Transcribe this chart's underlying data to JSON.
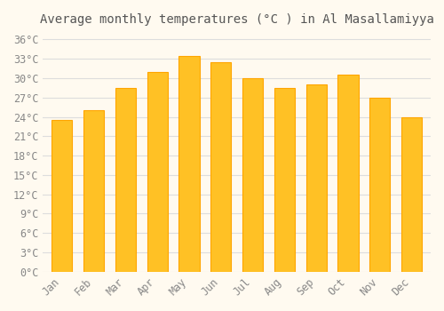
{
  "title": "Average monthly temperatures (°C ) in Al Masallamiyya",
  "months": [
    "Jan",
    "Feb",
    "Mar",
    "Apr",
    "May",
    "Jun",
    "Jul",
    "Aug",
    "Sep",
    "Oct",
    "Nov",
    "Dec"
  ],
  "temperatures": [
    23.5,
    25.0,
    28.5,
    31.0,
    33.5,
    32.5,
    30.0,
    28.5,
    29.0,
    30.5,
    27.0,
    24.0
  ],
  "bar_color_main": "#FFC125",
  "bar_color_edge": "#FFA500",
  "background_color": "#FFFAF0",
  "grid_color": "#DDDDDD",
  "ylim": [
    0,
    37
  ],
  "yticks": [
    0,
    3,
    6,
    9,
    12,
    15,
    18,
    21,
    24,
    27,
    30,
    33,
    36
  ],
  "tick_label_color": "#888888",
  "title_color": "#555555",
  "title_fontsize": 10,
  "axis_fontsize": 8.5
}
